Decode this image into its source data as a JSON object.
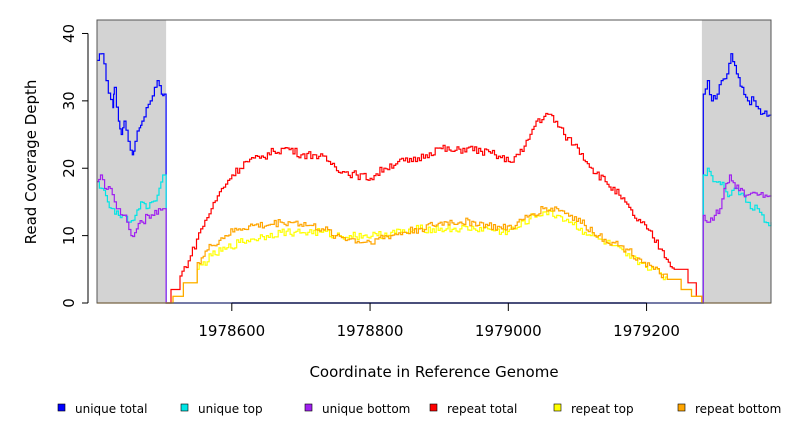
{
  "chart_data": {
    "type": "line",
    "title": "",
    "xlabel": "Coordinate in Reference Genome",
    "ylabel": "Read Coverage Depth",
    "xlim": [
      1978405,
      1979380
    ],
    "ylim": [
      0,
      42
    ],
    "x_ticks": [
      1978600,
      1978800,
      1979000,
      1979200
    ],
    "x_tick_labels": [
      "1978600",
      "1978800",
      "1979000",
      "1979200"
    ],
    "y_ticks": [
      0,
      10,
      20,
      30,
      40
    ],
    "y_tick_labels": [
      "0",
      "10",
      "20",
      "30",
      "40"
    ],
    "shaded_regions": [
      [
        1978405,
        1978505
      ],
      [
        1979280,
        1979380
      ]
    ],
    "legend_position": "bottom",
    "series": [
      {
        "name": "unique total",
        "color": "#0000ff",
        "points": [
          [
            1978405,
            36
          ],
          [
            1978412,
            37
          ],
          [
            1978418,
            33
          ],
          [
            1978428,
            29
          ],
          [
            1978430,
            32
          ],
          [
            1978436,
            27
          ],
          [
            1978440,
            25
          ],
          [
            1978444,
            27
          ],
          [
            1978450,
            24
          ],
          [
            1978456,
            22
          ],
          [
            1978460,
            24
          ],
          [
            1978466,
            26
          ],
          [
            1978470,
            27
          ],
          [
            1978476,
            29
          ],
          [
            1978482,
            30
          ],
          [
            1978488,
            32
          ],
          [
            1978492,
            33
          ],
          [
            1978498,
            31
          ],
          [
            1978502,
            31
          ],
          [
            1978505,
            0
          ],
          [
            1979280,
            0
          ],
          [
            1979282,
            31
          ],
          [
            1979288,
            33
          ],
          [
            1979294,
            30
          ],
          [
            1979302,
            31
          ],
          [
            1979308,
            33
          ],
          [
            1979316,
            34
          ],
          [
            1979322,
            37
          ],
          [
            1979330,
            34
          ],
          [
            1979338,
            32
          ],
          [
            1979346,
            30
          ],
          [
            1979355,
            30
          ],
          [
            1979365,
            28
          ],
          [
            1979380,
            28
          ]
        ]
      },
      {
        "name": "unique top",
        "color": "#00e5e5",
        "points": [
          [
            1978405,
            18
          ],
          [
            1978412,
            17
          ],
          [
            1978420,
            15
          ],
          [
            1978428,
            14
          ],
          [
            1978436,
            13
          ],
          [
            1978444,
            13
          ],
          [
            1978452,
            12
          ],
          [
            1978460,
            13
          ],
          [
            1978468,
            15
          ],
          [
            1978476,
            14
          ],
          [
            1978484,
            15
          ],
          [
            1978492,
            16
          ],
          [
            1978500,
            19
          ],
          [
            1978505,
            0
          ],
          [
            1979280,
            0
          ],
          [
            1979282,
            19
          ],
          [
            1979288,
            20
          ],
          [
            1979296,
            18
          ],
          [
            1979304,
            18
          ],
          [
            1979312,
            17
          ],
          [
            1979320,
            16
          ],
          [
            1979330,
            17
          ],
          [
            1979340,
            16
          ],
          [
            1979350,
            14
          ],
          [
            1979360,
            14
          ],
          [
            1979370,
            12
          ],
          [
            1979380,
            12
          ]
        ]
      },
      {
        "name": "unique bottom",
        "color": "#a020f0",
        "points": [
          [
            1978405,
            18
          ],
          [
            1978410,
            19
          ],
          [
            1978416,
            17
          ],
          [
            1978424,
            17
          ],
          [
            1978430,
            15
          ],
          [
            1978436,
            14
          ],
          [
            1978442,
            13
          ],
          [
            1978448,
            12
          ],
          [
            1978454,
            10
          ],
          [
            1978462,
            11
          ],
          [
            1978470,
            12
          ],
          [
            1978478,
            13
          ],
          [
            1978486,
            13
          ],
          [
            1978494,
            14
          ],
          [
            1978500,
            14
          ],
          [
            1978505,
            0
          ],
          [
            1979280,
            0
          ],
          [
            1979282,
            13
          ],
          [
            1979290,
            12
          ],
          [
            1979298,
            13
          ],
          [
            1979306,
            14
          ],
          [
            1979312,
            17
          ],
          [
            1979320,
            19
          ],
          [
            1979328,
            17
          ],
          [
            1979336,
            17
          ],
          [
            1979344,
            16
          ],
          [
            1979360,
            16
          ],
          [
            1979380,
            16
          ]
        ]
      },
      {
        "name": "repeat total",
        "color": "#ff0000",
        "points": [
          [
            1978505,
            0
          ],
          [
            1978512,
            2
          ],
          [
            1978525,
            4
          ],
          [
            1978540,
            7
          ],
          [
            1978555,
            11
          ],
          [
            1978570,
            14
          ],
          [
            1978585,
            17
          ],
          [
            1978600,
            19
          ],
          [
            1978620,
            21
          ],
          [
            1978640,
            21.5
          ],
          [
            1978660,
            22.5
          ],
          [
            1978680,
            23
          ],
          [
            1978700,
            22
          ],
          [
            1978720,
            22
          ],
          [
            1978740,
            21
          ],
          [
            1978760,
            19.5
          ],
          [
            1978780,
            19
          ],
          [
            1978800,
            18.5
          ],
          [
            1978820,
            20
          ],
          [
            1978840,
            21
          ],
          [
            1978860,
            21
          ],
          [
            1978880,
            22
          ],
          [
            1978900,
            23
          ],
          [
            1978920,
            22.5
          ],
          [
            1978940,
            23
          ],
          [
            1978960,
            22.5
          ],
          [
            1978980,
            22
          ],
          [
            1979000,
            21
          ],
          [
            1979020,
            22.5
          ],
          [
            1979040,
            27
          ],
          [
            1979060,
            28
          ],
          [
            1979080,
            25
          ],
          [
            1979100,
            23
          ],
          [
            1979120,
            20
          ],
          [
            1979140,
            18
          ],
          [
            1979160,
            16
          ],
          [
            1979180,
            13
          ],
          [
            1979200,
            11
          ],
          [
            1979220,
            8
          ],
          [
            1979240,
            5
          ],
          [
            1979260,
            3
          ],
          [
            1979272,
            1
          ],
          [
            1979280,
            0
          ]
        ]
      },
      {
        "name": "repeat top",
        "color": "#ffff00",
        "points": [
          [
            1978505,
            0
          ],
          [
            1978515,
            1
          ],
          [
            1978530,
            3
          ],
          [
            1978550,
            5
          ],
          [
            1978570,
            7
          ],
          [
            1978590,
            8
          ],
          [
            1978610,
            9
          ],
          [
            1978630,
            9.5
          ],
          [
            1978650,
            10
          ],
          [
            1978670,
            10.5
          ],
          [
            1978690,
            10.5
          ],
          [
            1978710,
            10.5
          ],
          [
            1978730,
            10.5
          ],
          [
            1978750,
            10
          ],
          [
            1978770,
            10
          ],
          [
            1978790,
            10
          ],
          [
            1978810,
            10
          ],
          [
            1978830,
            10.5
          ],
          [
            1978850,
            10.5
          ],
          [
            1978870,
            11
          ],
          [
            1978890,
            11
          ],
          [
            1978910,
            11
          ],
          [
            1978930,
            11
          ],
          [
            1978950,
            11
          ],
          [
            1978970,
            11
          ],
          [
            1978990,
            10.5
          ],
          [
            1979010,
            11
          ],
          [
            1979030,
            12.5
          ],
          [
            1979050,
            13.5
          ],
          [
            1979070,
            13
          ],
          [
            1979090,
            12
          ],
          [
            1979110,
            10.5
          ],
          [
            1979130,
            9.5
          ],
          [
            1979150,
            8.5
          ],
          [
            1979170,
            7
          ],
          [
            1979190,
            6
          ],
          [
            1979210,
            5
          ],
          [
            1979230,
            3.5
          ],
          [
            1979250,
            2
          ],
          [
            1979265,
            1
          ],
          [
            1979280,
            0
          ]
        ]
      },
      {
        "name": "repeat bottom",
        "color": "#ffa500",
        "points": [
          [
            1978405,
            0
          ],
          [
            1978505,
            0
          ],
          [
            1978515,
            1
          ],
          [
            1978530,
            3
          ],
          [
            1978550,
            6
          ],
          [
            1978570,
            8.5
          ],
          [
            1978590,
            10
          ],
          [
            1978610,
            11
          ],
          [
            1978630,
            11.5
          ],
          [
            1978650,
            11.5
          ],
          [
            1978670,
            12
          ],
          [
            1978690,
            12
          ],
          [
            1978710,
            11.5
          ],
          [
            1978730,
            11
          ],
          [
            1978750,
            10
          ],
          [
            1978770,
            9.5
          ],
          [
            1978790,
            9
          ],
          [
            1978810,
            9.5
          ],
          [
            1978830,
            10
          ],
          [
            1978850,
            10.5
          ],
          [
            1978870,
            11
          ],
          [
            1978890,
            11.5
          ],
          [
            1978910,
            12
          ],
          [
            1978930,
            12
          ],
          [
            1978950,
            12
          ],
          [
            1978970,
            11.5
          ],
          [
            1978990,
            11
          ],
          [
            1979010,
            11.5
          ],
          [
            1979030,
            13
          ],
          [
            1979050,
            14
          ],
          [
            1979070,
            14
          ],
          [
            1979090,
            13
          ],
          [
            1979110,
            11.5
          ],
          [
            1979130,
            10
          ],
          [
            1979150,
            9
          ],
          [
            1979170,
            8
          ],
          [
            1979190,
            6.5
          ],
          [
            1979210,
            5
          ],
          [
            1979230,
            3.5
          ],
          [
            1979250,
            2
          ],
          [
            1979265,
            1
          ],
          [
            1979280,
            0
          ],
          [
            1979380,
            0
          ]
        ]
      }
    ]
  }
}
